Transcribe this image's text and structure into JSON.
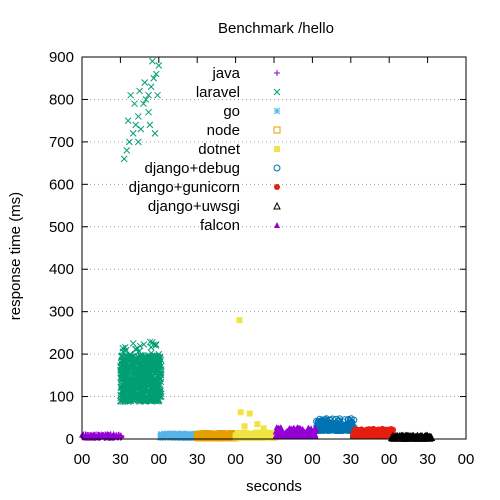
{
  "chart_data": {
    "type": "scatter",
    "title": "Benchmark /hello",
    "xlabel": "seconds",
    "ylabel": "response time (ms)",
    "ylim": [
      0,
      900
    ],
    "xlim": [
      0,
      300
    ],
    "grid": true,
    "legend_position": "top-right",
    "yticks": [
      "0",
      "100",
      "200",
      "300",
      "400",
      "500",
      "600",
      "700",
      "800",
      "900"
    ],
    "xticks": [
      "00",
      "30",
      "00",
      "30",
      "00",
      "30",
      "00",
      "30",
      "00",
      "30",
      "00"
    ],
    "series": [
      {
        "name": "java",
        "marker": "plus",
        "color": "#9400d3",
        "x_range": [
          0,
          31
        ],
        "y_base": 3,
        "y_spread": 8
      },
      {
        "name": "laravel",
        "marker": "cross",
        "color": "#009e73",
        "x_range": [
          30,
          62
        ],
        "y_base": 88,
        "y_spread": 110,
        "outliers": [
          [
            33,
            660
          ],
          [
            35,
            680
          ],
          [
            37,
            700
          ],
          [
            40,
            720
          ],
          [
            42,
            740
          ],
          [
            44,
            760
          ],
          [
            46,
            730
          ],
          [
            48,
            790
          ],
          [
            50,
            800
          ],
          [
            52,
            810
          ],
          [
            54,
            830
          ],
          [
            56,
            850
          ],
          [
            58,
            860
          ],
          [
            60,
            880
          ],
          [
            38,
            810
          ],
          [
            45,
            820
          ],
          [
            52,
            770
          ],
          [
            57,
            720
          ],
          [
            36,
            750
          ],
          [
            41,
            790
          ],
          [
            49,
            840
          ],
          [
            55,
            890
          ],
          [
            59,
            810
          ],
          [
            44,
            700
          ],
          [
            53,
            740
          ]
        ]
      },
      {
        "name": "go",
        "marker": "star",
        "color": "#56b4e9",
        "x_range": [
          61,
          92
        ],
        "y_base": 3,
        "y_spread": 10
      },
      {
        "name": "node",
        "marker": "box",
        "color": "#e69f00",
        "x_range": [
          90,
          121
        ],
        "y_base": 3,
        "y_spread": 10
      },
      {
        "name": "dotnet",
        "marker": "boxfill",
        "color": "#f0e442",
        "x_range": [
          120,
          151
        ],
        "y_base": 3,
        "y_spread": 12,
        "outliers": [
          [
            123,
            280
          ],
          [
            124,
            63
          ],
          [
            131,
            60
          ],
          [
            137,
            35
          ],
          [
            127,
            30
          ],
          [
            142,
            25
          ]
        ]
      },
      {
        "name": "django+debug",
        "marker": "circle",
        "color": "#0072b2",
        "x_range": [
          183,
          213
        ],
        "y_base": 20,
        "y_spread": 28
      },
      {
        "name": "django+gunicorn",
        "marker": "circlefill",
        "color": "#e51e10",
        "x_range": [
          212,
          243
        ],
        "y_base": 6,
        "y_spread": 18
      },
      {
        "name": "django+uwsgi",
        "marker": "triangle",
        "color": "#000000",
        "x_range": [
          242,
          273
        ],
        "y_base": 2,
        "y_spread": 6
      },
      {
        "name": "falcon",
        "marker": "trianglefill",
        "color": "#9400d3",
        "x_range": [
          151,
          183
        ],
        "y_base": 6,
        "y_spread": 22
      }
    ]
  }
}
